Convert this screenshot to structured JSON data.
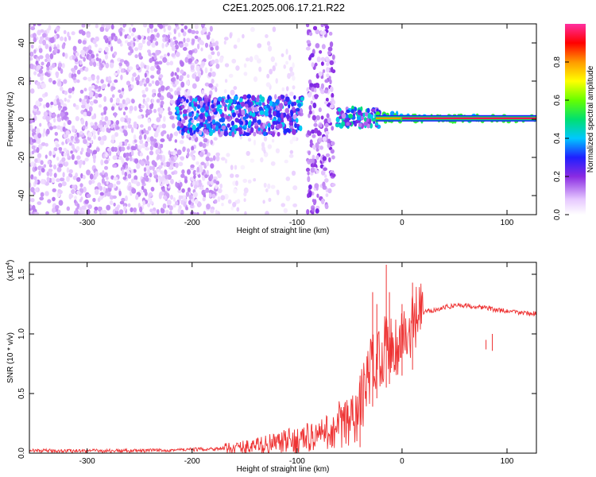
{
  "title": "C2E1.2025.006.17.21.R22",
  "chart_data": [
    {
      "type": "heatmap",
      "xlabel": "Height of straight line (km)",
      "ylabel": "Frequency (Hz)",
      "xlim": [
        -355,
        128
      ],
      "ylim": [
        -50,
        50
      ],
      "xticks": [
        -300,
        -200,
        -100,
        0,
        100
      ],
      "xtick_labels": [
        "-300",
        "-200",
        "-100",
        "0",
        "100"
      ],
      "yticks": [
        -40,
        -20,
        0,
        20,
        40
      ],
      "ytick_labels": [
        "-40",
        "-20",
        "0",
        "20",
        "40"
      ],
      "colorbar": {
        "label": "Normalized spectral amplitude",
        "range": [
          0,
          1
        ],
        "ticks": [
          0.0,
          0.2,
          0.4,
          0.6,
          0.8
        ],
        "tick_labels": [
          "0.0",
          "0.2",
          "0.4",
          "0.6",
          "0.8"
        ]
      },
      "bands": [
        {
          "x_start": -355,
          "x_end": -175,
          "f_low": -50,
          "f_high": 50,
          "amplitude": 0.1,
          "fill": "dense"
        },
        {
          "x_start": -175,
          "x_end": -100,
          "f_low": -50,
          "f_high": 50,
          "amplitude": 0.05,
          "fill": "sparse"
        },
        {
          "x_start": -215,
          "x_end": -95,
          "f_low": -8,
          "f_high": 12,
          "amplitude": 0.3
        },
        {
          "x_start": -90,
          "x_end": -65,
          "f_low": -50,
          "f_high": 50,
          "amplitude": 0.15,
          "fill": "dense"
        },
        {
          "x_start": -63,
          "x_end": -20,
          "f_low": -4,
          "f_high": 6,
          "amplitude": 0.35
        },
        {
          "x_start": -25,
          "x_end": 0,
          "f_low": -1,
          "f_high": 3,
          "amplitude": 0.8
        },
        {
          "x_start": 0,
          "x_end": 128,
          "f_low": -1,
          "f_high": 2,
          "amplitude": 0.95
        }
      ],
      "grid": false
    },
    {
      "type": "line",
      "xlabel": "Height of straight line (km)",
      "ylabel": "SNR (10 * v/v)",
      "y_multiplier_label": "(x10",
      "y_multiplier_exp": "4",
      "xlim": [
        -355,
        128
      ],
      "ylim": [
        0,
        1.6
      ],
      "xticks": [
        -300,
        -200,
        -100,
        0,
        100
      ],
      "xtick_labels": [
        "-300",
        "-200",
        "-100",
        "0",
        "100"
      ],
      "yticks": [
        0.0,
        0.5,
        1.0,
        1.5
      ],
      "ytick_labels": [
        "0.0",
        "0.5",
        "1.0",
        "1.5"
      ],
      "series": [
        {
          "color": "#ee3333",
          "x": [
            -355,
            -300,
            -250,
            -200,
            -170,
            -150,
            -120,
            -100,
            -80,
            -60,
            -50,
            -45,
            -40,
            -35,
            -30,
            -25,
            -20,
            -15,
            -10,
            -5,
            0,
            5,
            10,
            15,
            20,
            30,
            40,
            50,
            60,
            70,
            80,
            90,
            100,
            110,
            128
          ],
          "y": [
            0.02,
            0.02,
            0.02,
            0.03,
            0.04,
            0.05,
            0.08,
            0.11,
            0.15,
            0.2,
            0.25,
            0.28,
            0.4,
            0.55,
            0.7,
            0.8,
            0.85,
            0.9,
            0.95,
            0.88,
            1.0,
            0.95,
            1.05,
            1.15,
            1.18,
            1.2,
            1.22,
            1.24,
            1.24,
            1.23,
            1.22,
            1.2,
            1.19,
            1.18,
            1.17
          ]
        }
      ],
      "spikes": [
        {
          "x": -40,
          "y": 0.65
        },
        {
          "x": -28,
          "y": 1.35
        },
        {
          "x": -24,
          "y": 1.25
        },
        {
          "x": -15,
          "y": 1.58
        },
        {
          "x": -12,
          "y": 1.35
        },
        {
          "x": 0,
          "y": 1.25
        },
        {
          "x": 10,
          "y": 1.43
        },
        {
          "x": 80,
          "y": 0.95
        },
        {
          "x": 86,
          "y": 1.0
        }
      ],
      "grid": false
    }
  ]
}
